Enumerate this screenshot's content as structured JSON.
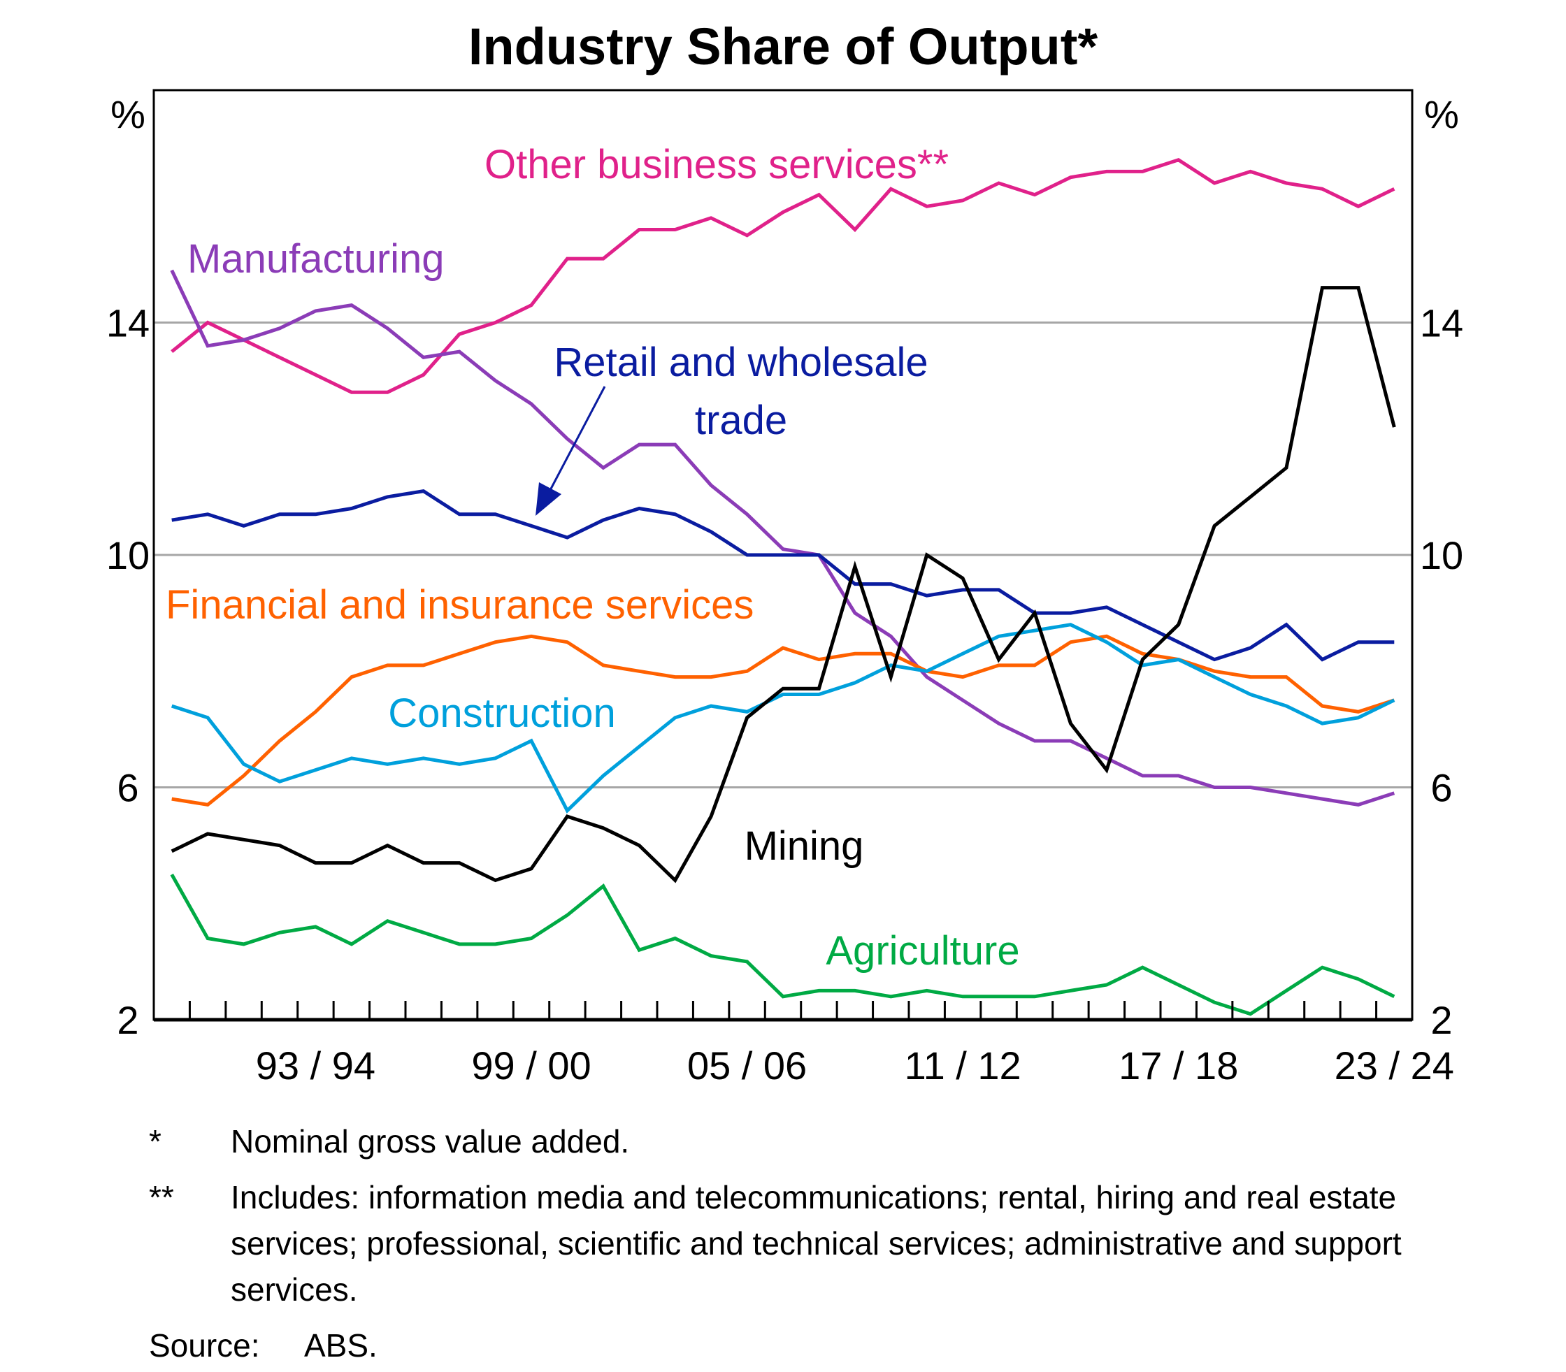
{
  "chart_data": {
    "type": "line",
    "title": "Industry Share of Output*",
    "xlabel": "",
    "ylabel": "%",
    "ylabel_right": "%",
    "ylim": [
      2,
      18
    ],
    "yticks": [
      2,
      6,
      10,
      14
    ],
    "ytick_labels": [
      "2",
      "6",
      "10",
      "14"
    ],
    "grid": true,
    "x": [
      "1989/90",
      "1990/91",
      "1991/92",
      "1992/93",
      "1993/94",
      "1994/95",
      "1995/96",
      "1996/97",
      "1997/98",
      "1998/99",
      "1999/00",
      "2000/01",
      "2001/02",
      "2002/03",
      "2003/04",
      "2004/05",
      "2005/06",
      "2006/07",
      "2007/08",
      "2008/09",
      "2009/10",
      "2010/11",
      "2011/12",
      "2012/13",
      "2013/14",
      "2014/15",
      "2015/16",
      "2016/17",
      "2017/18",
      "2018/19",
      "2019/20",
      "2020/21",
      "2021/22",
      "2022/23",
      "2023/24"
    ],
    "xtick_labels": [
      {
        "index": 4,
        "label": "93/94"
      },
      {
        "index": 10,
        "label": "99/00"
      },
      {
        "index": 16,
        "label": "05/06"
      },
      {
        "index": 22,
        "label": "11/12"
      },
      {
        "index": 28,
        "label": "17/18"
      },
      {
        "index": 34,
        "label": "23/24"
      }
    ],
    "series": [
      {
        "name": "Other business services**",
        "color": "#E0218A",
        "values": [
          13.5,
          14.0,
          13.7,
          13.4,
          13.1,
          12.8,
          12.8,
          13.1,
          13.8,
          14.0,
          14.3,
          15.1,
          15.1,
          15.6,
          15.6,
          15.8,
          15.5,
          15.9,
          16.2,
          15.6,
          16.3,
          16.0,
          16.1,
          16.4,
          16.2,
          16.5,
          16.6,
          16.6,
          16.8,
          16.4,
          16.6,
          16.4,
          16.3,
          16.0,
          16.3
        ]
      },
      {
        "name": "Manufacturing",
        "color": "#8B3CB7",
        "values": [
          14.9,
          13.6,
          13.7,
          13.9,
          14.2,
          14.3,
          13.9,
          13.4,
          13.5,
          13.0,
          12.6,
          12.0,
          11.5,
          11.9,
          11.9,
          11.2,
          10.7,
          10.1,
          10.0,
          9.0,
          8.6,
          7.9,
          7.5,
          7.1,
          6.8,
          6.8,
          6.5,
          6.2,
          6.2,
          6.0,
          6.0,
          5.9,
          5.8,
          5.7,
          5.9
        ]
      },
      {
        "name": "Retail and wholesale trade",
        "color": "#0A1CA0",
        "values": [
          10.6,
          10.7,
          10.5,
          10.7,
          10.7,
          10.8,
          11.0,
          11.1,
          10.7,
          10.7,
          10.5,
          10.3,
          10.6,
          10.8,
          10.7,
          10.4,
          10.0,
          10.0,
          10.0,
          9.5,
          9.5,
          9.3,
          9.4,
          9.4,
          9.0,
          9.0,
          9.1,
          8.8,
          8.5,
          8.2,
          8.4,
          8.8,
          8.2,
          8.5,
          8.5
        ]
      },
      {
        "name": "Financial and insurance services",
        "color": "#FF6100",
        "values": [
          5.8,
          5.7,
          6.2,
          6.8,
          7.3,
          7.9,
          8.1,
          8.1,
          8.3,
          8.5,
          8.6,
          8.5,
          8.1,
          8.0,
          7.9,
          7.9,
          8.0,
          8.4,
          8.2,
          8.3,
          8.3,
          8.0,
          7.9,
          8.1,
          8.1,
          8.5,
          8.6,
          8.3,
          8.2,
          8.0,
          7.9,
          7.9,
          7.4,
          7.3,
          7.5
        ]
      },
      {
        "name": "Construction",
        "color": "#00A0DC",
        "values": [
          7.4,
          7.2,
          6.4,
          6.1,
          6.3,
          6.5,
          6.4,
          6.5,
          6.4,
          6.5,
          6.8,
          5.6,
          6.2,
          6.7,
          7.2,
          7.4,
          7.3,
          7.6,
          7.6,
          7.8,
          8.1,
          8.0,
          8.3,
          8.6,
          8.7,
          8.8,
          8.5,
          8.1,
          8.2,
          7.9,
          7.6,
          7.4,
          7.1,
          7.2,
          7.5
        ]
      },
      {
        "name": "Mining",
        "color": "#000000",
        "values": [
          4.9,
          5.2,
          5.1,
          5.0,
          4.7,
          4.7,
          5.0,
          4.7,
          4.7,
          4.4,
          4.6,
          5.5,
          5.3,
          5.0,
          4.4,
          5.5,
          7.2,
          7.7,
          7.7,
          9.8,
          7.9,
          10.0,
          9.6,
          8.2,
          9.0,
          7.1,
          6.3,
          8.2,
          8.8,
          10.5,
          11.0,
          11.5,
          14.6,
          14.6,
          12.2
        ]
      },
      {
        "name": "Agriculture",
        "color": "#00AA44",
        "values": [
          4.5,
          3.4,
          3.3,
          3.5,
          3.6,
          3.3,
          3.7,
          3.5,
          3.3,
          3.3,
          3.4,
          3.8,
          4.3,
          3.2,
          3.4,
          3.1,
          3.0,
          2.4,
          2.5,
          2.5,
          2.4,
          2.5,
          2.4,
          2.4,
          2.4,
          2.5,
          2.6,
          2.9,
          2.6,
          2.3,
          2.1,
          2.5,
          2.9,
          2.7,
          2.4
        ]
      }
    ],
    "series_labels": [
      {
        "series": 0,
        "lines": [
          "Other business services**"
        ]
      },
      {
        "series": 1,
        "lines": [
          "Manufacturing"
        ]
      },
      {
        "series": 2,
        "lines": [
          "Retail and wholesale",
          "trade"
        ],
        "arrow": true
      },
      {
        "series": 3,
        "lines": [
          "Financial and insurance services"
        ]
      },
      {
        "series": 4,
        "lines": [
          "Construction"
        ]
      },
      {
        "series": 5,
        "lines": [
          "Mining"
        ]
      },
      {
        "series": 6,
        "lines": [
          "Agriculture"
        ]
      }
    ],
    "legend": "inline labels"
  },
  "notes": [
    {
      "mark": "*",
      "text": "Nominal gross value added."
    },
    {
      "mark": "**",
      "text": "Includes: information media and telecommunications; rental, hiring and real estate services; professional, scientific and technical services; administrative and support services."
    }
  ],
  "source": {
    "label": "Source:",
    "text": "ABS."
  }
}
